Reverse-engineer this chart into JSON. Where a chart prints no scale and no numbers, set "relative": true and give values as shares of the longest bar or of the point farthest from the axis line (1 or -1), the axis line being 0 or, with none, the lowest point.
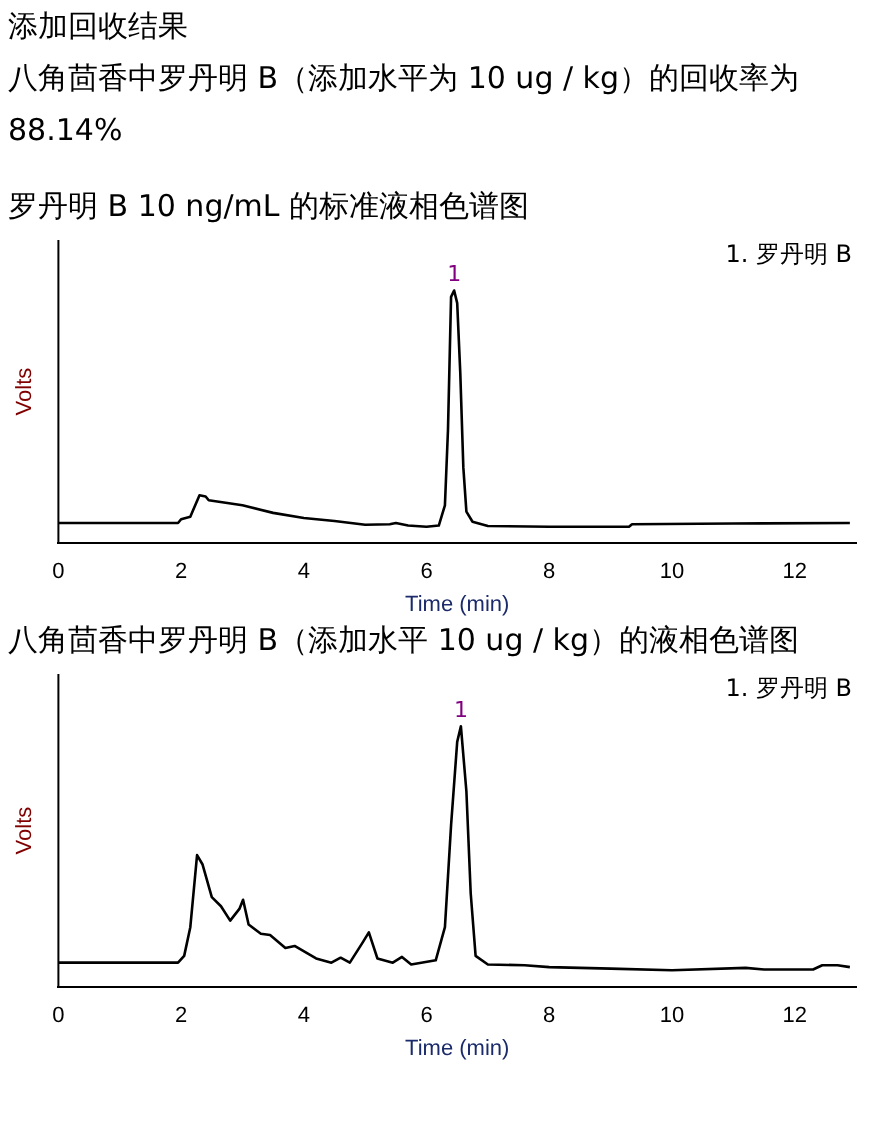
{
  "chart_data": [
    {
      "type": "line",
      "title": "罗丹明 B 10 ng/mL 的标准液相色谱图",
      "xlabel": "Time (min)",
      "ylabel": "Volts",
      "relative": true,
      "xlim": [
        0,
        13
      ],
      "xticks": [
        0,
        2,
        4,
        6,
        8,
        10,
        12
      ],
      "annotations": [
        "添加回收结果",
        "八角茴香中罗丹明 B（添加水平为 10 ug / kg）的回收率为88.14%",
        "1. 罗丹明 B",
        {
          "text": "1",
          "x": 6.45,
          "y": 1
        }
      ],
      "series": [
        {
          "color": "#000000",
          "x": [
            0,
            1.95,
            2.0,
            2.15,
            2.3,
            2.4,
            2.45,
            3.0,
            3.5,
            4.0,
            4.5,
            5.0,
            5.4,
            5.5,
            5.7,
            6.0,
            6.2,
            6.3,
            6.35,
            6.4,
            6.45,
            6.5,
            6.55,
            6.6,
            6.65,
            6.75,
            7.0,
            8.0,
            9.3,
            9.35,
            11.0,
            12.9
          ],
          "values": [
            0.08,
            0.08,
            0.095,
            0.105,
            0.19,
            0.185,
            0.17,
            0.15,
            0.12,
            0.1,
            0.088,
            0.073,
            0.075,
            0.08,
            0.07,
            0.065,
            0.07,
            0.15,
            0.45,
            0.975,
            1,
            0.95,
            0.675,
            0.3,
            0.125,
            0.085,
            0.068,
            0.065,
            0.065,
            0.075,
            0.078,
            0.08
          ]
        }
      ]
    },
    {
      "type": "line",
      "title": "八角茴香中罗丹明 B（添加水平 10 ug / kg）的液相色谱图",
      "xlabel": "Time (min)",
      "ylabel": "Volts",
      "relative": true,
      "xlim": [
        0,
        13
      ],
      "xticks": [
        0,
        2,
        4,
        6,
        8,
        10,
        12
      ],
      "annotations": [
        "1. 罗丹明 B",
        {
          "text": "1",
          "x": 6.56,
          "y": 1
        }
      ],
      "series": [
        {
          "color": "#000000",
          "x": [
            0,
            1.95,
            2.05,
            2.15,
            2.26,
            2.35,
            2.5,
            2.65,
            2.8,
            2.95,
            3.01,
            3.1,
            3.3,
            3.45,
            3.7,
            3.85,
            4.2,
            4.45,
            4.6,
            4.75,
            4.95,
            5.06,
            5.2,
            5.45,
            5.6,
            5.75,
            6.15,
            6.3,
            6.4,
            6.5,
            6.56,
            6.65,
            6.72,
            6.8,
            7.0,
            7.6,
            8.0,
            9.0,
            10.0,
            11.2,
            11.5,
            12.3,
            12.45,
            12.7,
            12.9
          ],
          "values": [
            0.094,
            0.094,
            0.12,
            0.23,
            0.506,
            0.47,
            0.345,
            0.31,
            0.255,
            0.3,
            0.335,
            0.24,
            0.205,
            0.2,
            0.15,
            0.158,
            0.11,
            0.094,
            0.113,
            0.094,
            0.168,
            0.21,
            0.11,
            0.094,
            0.116,
            0.087,
            0.103,
            0.23,
            0.62,
            0.94,
            1,
            0.75,
            0.36,
            0.12,
            0.087,
            0.084,
            0.077,
            0.071,
            0.065,
            0.074,
            0.068,
            0.068,
            0.084,
            0.084,
            0.077
          ]
        }
      ]
    }
  ]
}
